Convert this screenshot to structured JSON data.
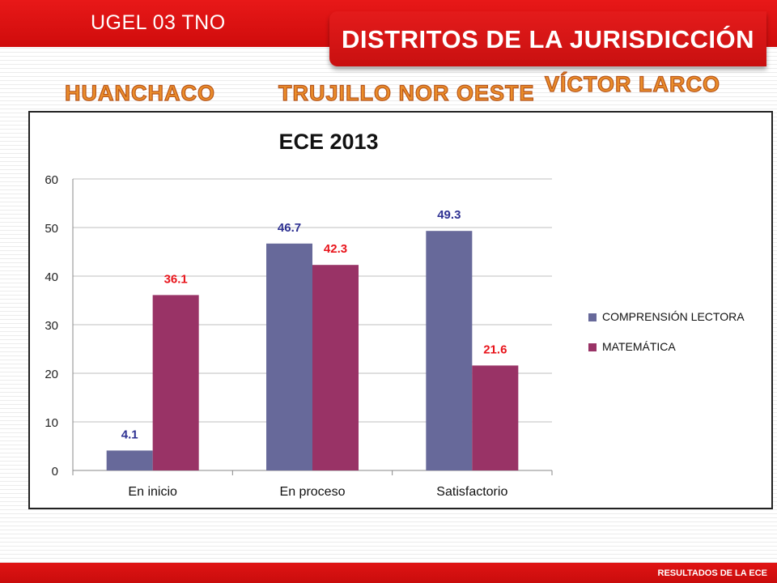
{
  "header": {
    "ugel": "UGEL 03 TNO",
    "banner": "DISTRITOS DE LA JURISDICCIÓN"
  },
  "districts": {
    "huanchaco": "HUANCHACO",
    "trujillo": "TRUJILLO NOR OESTE",
    "victor_larco": "VÍCTOR LARCO"
  },
  "footer": {
    "label": "RESULTADOS DE LA ECE"
  },
  "colors": {
    "header_red": "#d81313",
    "district_orange": "#ea8d2a",
    "series_blue": "#67699a",
    "series_magenta": "#993366",
    "label_blue": "#2e3192",
    "label_red": "#e8141b"
  },
  "chart_data": {
    "type": "bar",
    "title": "ECE 2013",
    "categories": [
      "En inicio",
      "En proceso",
      "Satisfactorio"
    ],
    "series": [
      {
        "name": "COMPRENSIÓN LECTORA",
        "values": [
          4.1,
          46.7,
          49.3
        ]
      },
      {
        "name": "MATEMÁTICA",
        "values": [
          36.1,
          42.3,
          21.6
        ]
      }
    ],
    "ylim": [
      0,
      60
    ],
    "yticks": [
      0,
      10,
      20,
      30,
      40,
      50,
      60
    ],
    "grid": true,
    "legend": "right"
  }
}
